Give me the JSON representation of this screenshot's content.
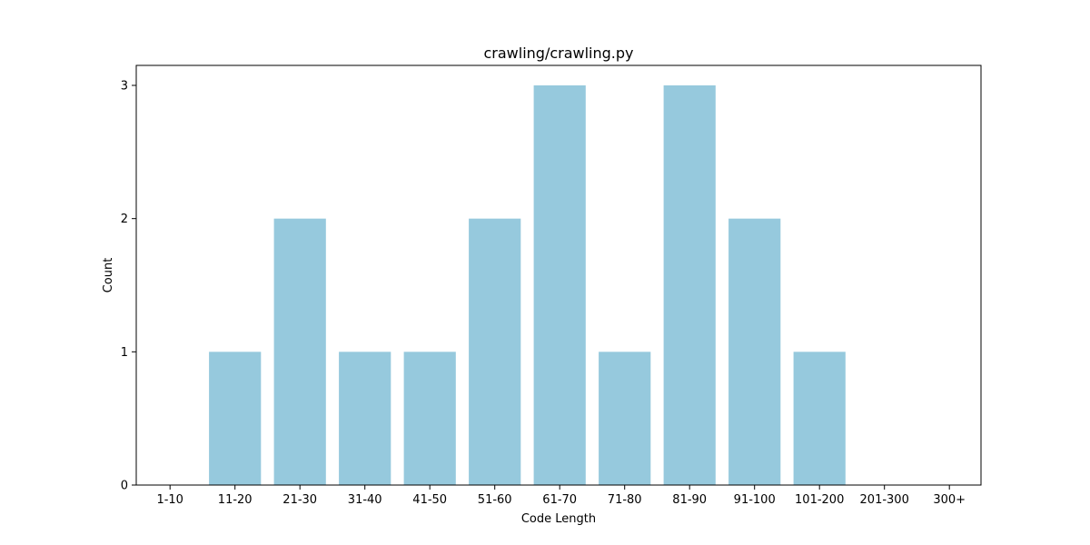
{
  "chart_data": {
    "type": "bar",
    "title": "crawling/crawling.py",
    "xlabel": "Code Length",
    "ylabel": "Count",
    "categories": [
      "1-10",
      "11-20",
      "21-30",
      "31-40",
      "41-50",
      "51-60",
      "61-70",
      "71-80",
      "81-90",
      "91-100",
      "101-200",
      "201-300",
      "300+"
    ],
    "values": [
      0,
      1,
      2,
      1,
      1,
      2,
      3,
      1,
      3,
      2,
      1,
      0,
      0
    ],
    "yticks": [
      "0",
      "1",
      "2",
      "3"
    ],
    "ylim": [
      0,
      3.15
    ],
    "grid": false,
    "bar_color": "#96c9dd"
  }
}
